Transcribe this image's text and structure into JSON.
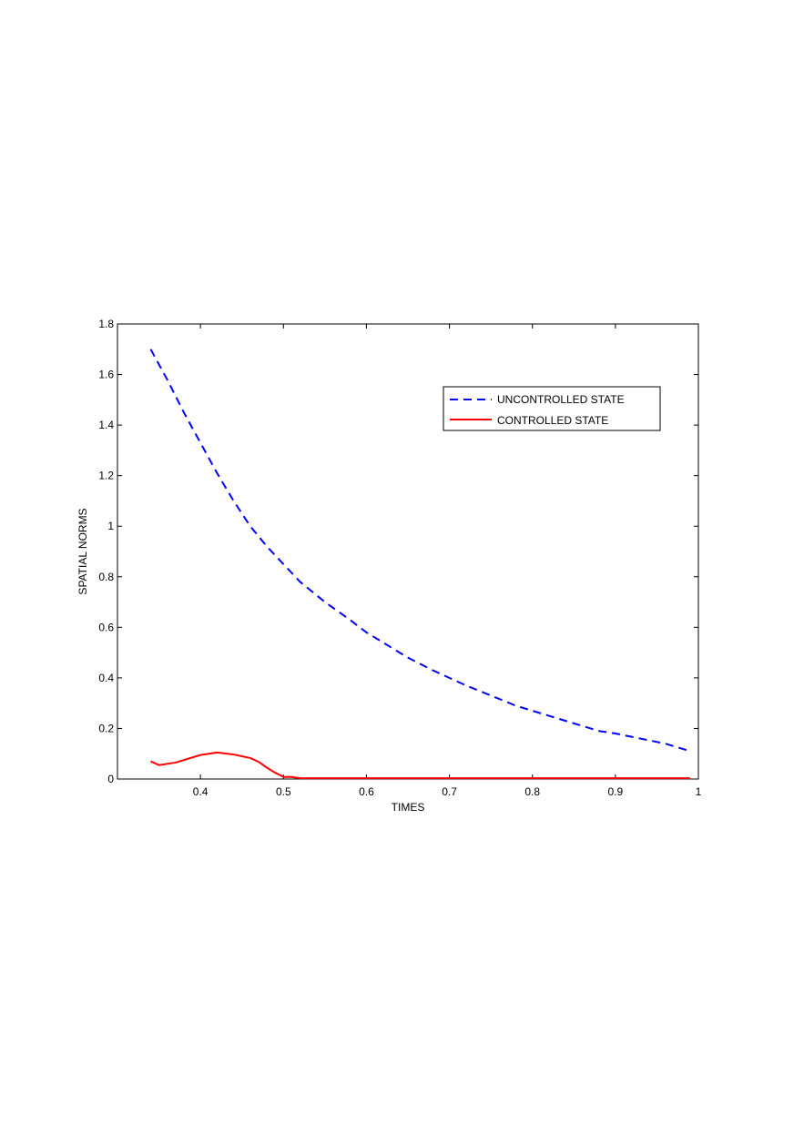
{
  "chart_data": {
    "type": "line",
    "title": "",
    "xlabel": "TIMES",
    "ylabel": "SPATIAL NORMS",
    "xlim": [
      0.3,
      1.0
    ],
    "ylim": [
      0,
      1.8
    ],
    "x_ticks": [
      "0.4",
      "0.5",
      "0.6",
      "0.7",
      "0.8",
      "0.9",
      "1"
    ],
    "y_ticks": [
      "0",
      "0.2",
      "0.4",
      "0.6",
      "0.8",
      "1",
      "1.2",
      "1.4",
      "1.6",
      "1.8"
    ],
    "x_tick_values": [
      0.4,
      0.5,
      0.6,
      0.7,
      0.8,
      0.9,
      1.0
    ],
    "y_tick_values": [
      0,
      0.2,
      0.4,
      0.6,
      0.8,
      1.0,
      1.2,
      1.4,
      1.6,
      1.8
    ],
    "grid": false,
    "legend_position": "top-right",
    "series": [
      {
        "name": "UNCONTROLLED STATE",
        "color": "#0000ff",
        "style": "dashed",
        "x": [
          0.34,
          0.36,
          0.38,
          0.4,
          0.42,
          0.44,
          0.46,
          0.48,
          0.5,
          0.52,
          0.55,
          0.58,
          0.6,
          0.62,
          0.65,
          0.68,
          0.7,
          0.72,
          0.75,
          0.78,
          0.8,
          0.82,
          0.85,
          0.88,
          0.9,
          0.93,
          0.96,
          0.99
        ],
        "y": [
          1.7,
          1.58,
          1.45,
          1.33,
          1.21,
          1.1,
          1.0,
          0.92,
          0.85,
          0.78,
          0.7,
          0.63,
          0.58,
          0.54,
          0.48,
          0.43,
          0.4,
          0.37,
          0.33,
          0.29,
          0.27,
          0.25,
          0.22,
          0.19,
          0.18,
          0.16,
          0.14,
          0.11
        ]
      },
      {
        "name": "CONTROLLED STATE",
        "color": "#ff0000",
        "style": "solid",
        "x": [
          0.34,
          0.35,
          0.37,
          0.39,
          0.4,
          0.42,
          0.44,
          0.45,
          0.46,
          0.47,
          0.48,
          0.49,
          0.5,
          0.51,
          0.52,
          0.6,
          0.7,
          0.8,
          0.9,
          0.99
        ],
        "y": [
          0.07,
          0.055,
          0.065,
          0.085,
          0.095,
          0.105,
          0.097,
          0.09,
          0.083,
          0.068,
          0.045,
          0.025,
          0.008,
          0.008,
          0.003,
          0.003,
          0.003,
          0.003,
          0.003,
          0.003
        ]
      }
    ]
  }
}
